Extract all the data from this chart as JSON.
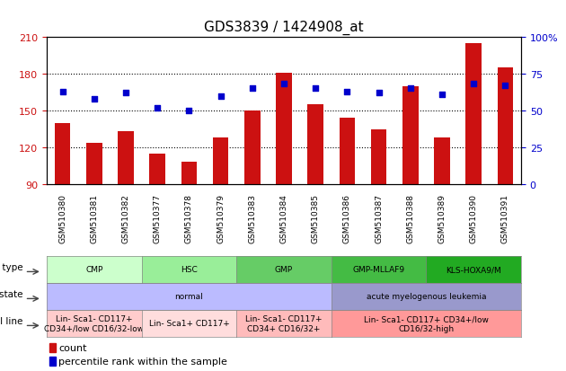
{
  "title": "GDS3839 / 1424908_at",
  "samples": [
    "GSM510380",
    "GSM510381",
    "GSM510382",
    "GSM510377",
    "GSM510378",
    "GSM510379",
    "GSM510383",
    "GSM510384",
    "GSM510385",
    "GSM510386",
    "GSM510387",
    "GSM510388",
    "GSM510389",
    "GSM510390",
    "GSM510391"
  ],
  "counts": [
    140,
    124,
    133,
    115,
    108,
    128,
    150,
    181,
    155,
    144,
    135,
    170,
    128,
    205,
    185
  ],
  "percentile_ranks": [
    63,
    58,
    62,
    52,
    50,
    60,
    65,
    68,
    65,
    63,
    62,
    65,
    61,
    68,
    67
  ],
  "ylim_left": [
    90,
    210
  ],
  "ylim_right": [
    0,
    100
  ],
  "yticks_left": [
    90,
    120,
    150,
    180,
    210
  ],
  "yticks_right": [
    0,
    25,
    50,
    75,
    100
  ],
  "bar_color": "#cc1111",
  "dot_color": "#0000cc",
  "cell_type_groups": [
    {
      "label": "CMP",
      "start": 0,
      "end": 3,
      "color": "#ccffcc"
    },
    {
      "label": "HSC",
      "start": 3,
      "end": 6,
      "color": "#99ee99"
    },
    {
      "label": "GMP",
      "start": 6,
      "end": 9,
      "color": "#66cc66"
    },
    {
      "label": "GMP-MLLAF9",
      "start": 9,
      "end": 12,
      "color": "#44bb44"
    },
    {
      "label": "KLS-HOXA9/M",
      "start": 12,
      "end": 15,
      "color": "#22aa22"
    }
  ],
  "disease_state_groups": [
    {
      "label": "normal",
      "start": 0,
      "end": 9,
      "color": "#bbbbff"
    },
    {
      "label": "acute myelogenous leukemia",
      "start": 9,
      "end": 15,
      "color": "#9999cc"
    }
  ],
  "cell_line_groups": [
    {
      "label": "Lin- Sca1- CD117+\nCD34+/low CD16/32-low",
      "start": 0,
      "end": 3,
      "color": "#ffcccc"
    },
    {
      "label": "Lin- Sca1+ CD117+",
      "start": 3,
      "end": 6,
      "color": "#ffdddd"
    },
    {
      "label": "Lin- Sca1- CD117+\nCD34+ CD16/32+",
      "start": 6,
      "end": 9,
      "color": "#ffbbbb"
    },
    {
      "label": "Lin- Sca1- CD117+ CD34+/low\nCD16/32-high",
      "start": 9,
      "end": 15,
      "color": "#ff9999"
    }
  ],
  "legend_items": [
    {
      "label": "count",
      "color": "#cc1111"
    },
    {
      "label": "percentile rank within the sample",
      "color": "#0000cc"
    }
  ]
}
